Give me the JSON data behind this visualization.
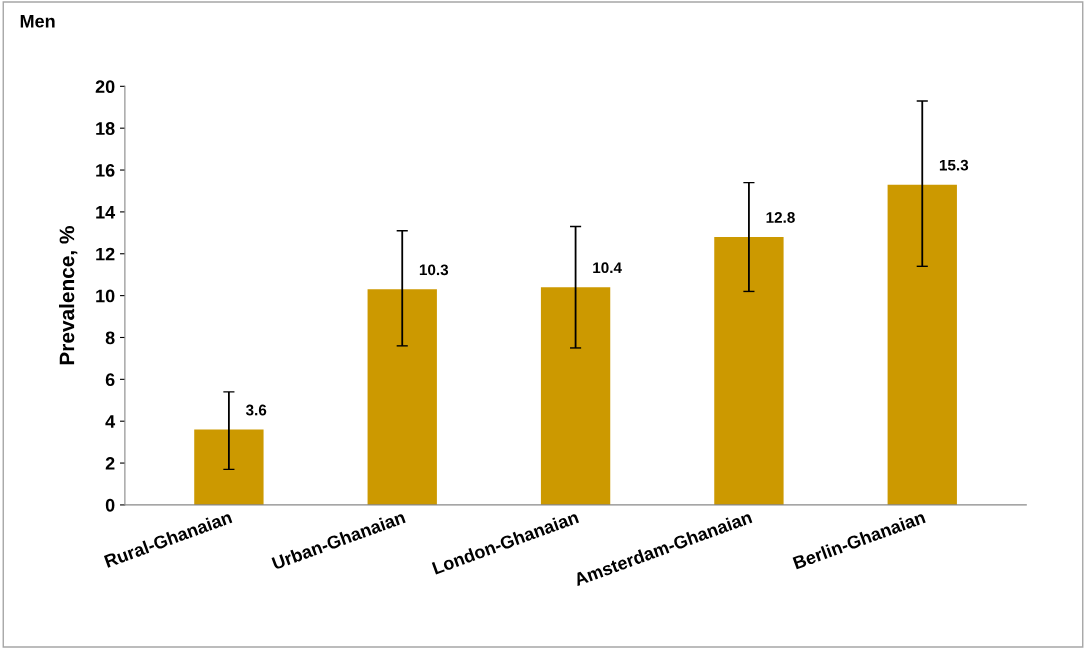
{
  "chart_data": {
    "type": "bar",
    "title": "Men",
    "ylabel": "Prevalence, %",
    "categories": [
      "Rural-Ghanaian",
      "Urban-Ghanaian",
      "London-Ghanaian",
      "Amsterdam-Ghanaian",
      "Berlin-Ghanaian"
    ],
    "values": [
      3.6,
      10.3,
      10.4,
      12.8,
      15.3
    ],
    "errors": [
      [
        1.7,
        5.4
      ],
      [
        7.6,
        13.1
      ],
      [
        7.5,
        13.3
      ],
      [
        10.2,
        15.4
      ],
      [
        11.4,
        19.3
      ]
    ],
    "color": "#cc9900",
    "ylim": [
      0,
      20
    ],
    "yticks": [
      0,
      2,
      4,
      6,
      8,
      10,
      12,
      14,
      16,
      18,
      20
    ],
    "data_labels": true,
    "grid": false,
    "legend": false
  }
}
